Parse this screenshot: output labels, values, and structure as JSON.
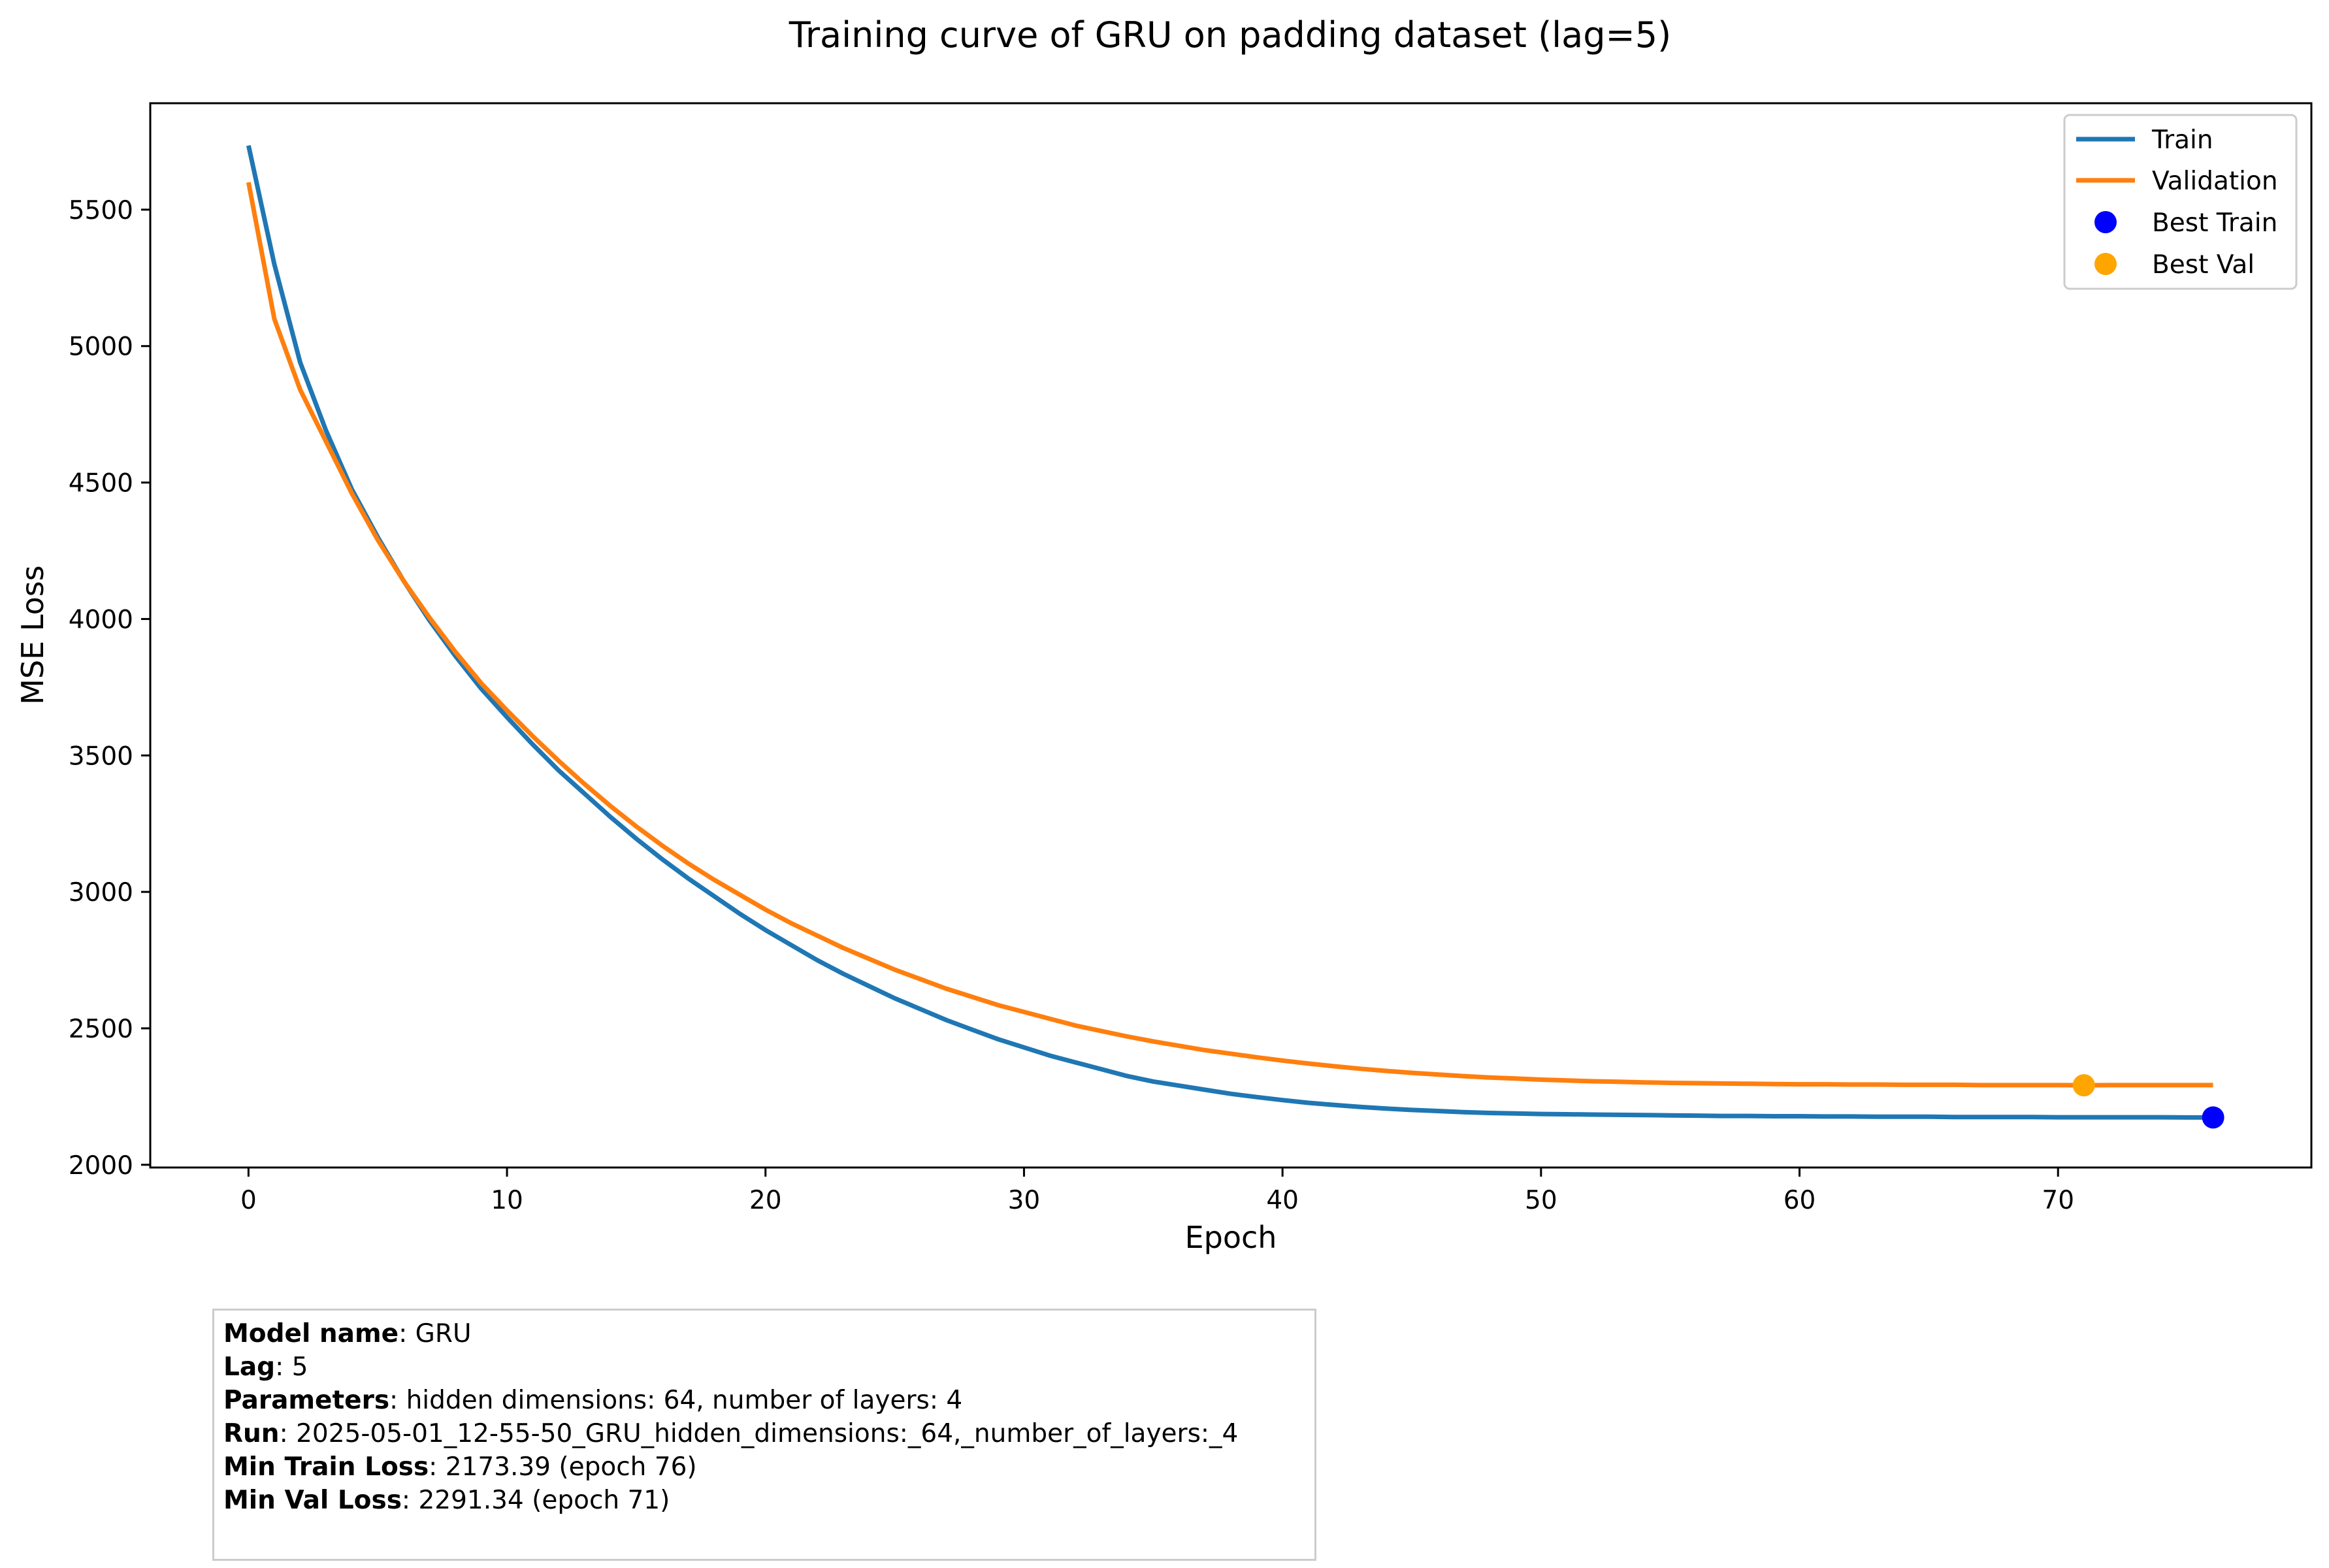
{
  "chart_data": {
    "type": "line",
    "title": "Training curve of GRU on padding dataset (lag=5)",
    "xlabel": "Epoch",
    "ylabel": "MSE Loss",
    "xlim": [
      -3.8,
      79.8
    ],
    "ylim": [
      1990,
      5890
    ],
    "xticks": [
      0,
      10,
      20,
      30,
      40,
      50,
      60,
      70
    ],
    "yticks": [
      2000,
      2500,
      3000,
      3500,
      4000,
      4500,
      5000,
      5500
    ],
    "grid": false,
    "legend_position": "top-right",
    "colors": {
      "train": "#1f77b4",
      "validation": "#ff7f0e",
      "best_train": "#0000ff",
      "best_val": "#ffa500"
    },
    "series": [
      {
        "name": "Train",
        "x": [
          0,
          1,
          2,
          3,
          4,
          5,
          6,
          7,
          8,
          9,
          10,
          11,
          12,
          13,
          14,
          15,
          16,
          17,
          18,
          19,
          20,
          21,
          22,
          23,
          24,
          25,
          26,
          27,
          28,
          29,
          30,
          31,
          32,
          33,
          34,
          35,
          36,
          37,
          38,
          39,
          40,
          41,
          42,
          43,
          44,
          45,
          46,
          47,
          48,
          49,
          50,
          51,
          52,
          53,
          54,
          55,
          56,
          57,
          58,
          59,
          60,
          61,
          62,
          63,
          64,
          65,
          66,
          67,
          68,
          69,
          70,
          71,
          72,
          73,
          74,
          75,
          76
        ],
        "values": [
          5735,
          5300,
          4940,
          4690,
          4475,
          4300,
          4140,
          3995,
          3865,
          3745,
          3640,
          3540,
          3445,
          3360,
          3275,
          3195,
          3120,
          3050,
          2985,
          2920,
          2860,
          2805,
          2750,
          2700,
          2655,
          2610,
          2570,
          2530,
          2495,
          2460,
          2430,
          2400,
          2375,
          2350,
          2325,
          2305,
          2290,
          2275,
          2260,
          2248,
          2237,
          2227,
          2219,
          2212,
          2206,
          2201,
          2197,
          2193,
          2190,
          2188,
          2186,
          2185,
          2184,
          2183,
          2182,
          2181,
          2180,
          2179,
          2179,
          2178,
          2178,
          2177,
          2177,
          2176,
          2176,
          2176,
          2175,
          2175,
          2175,
          2175,
          2174,
          2174,
          2174,
          2174,
          2174,
          2173.5,
          2173.39
        ]
      },
      {
        "name": "Validation",
        "x": [
          0,
          1,
          2,
          3,
          4,
          5,
          6,
          7,
          8,
          9,
          10,
          11,
          12,
          13,
          14,
          15,
          16,
          17,
          18,
          19,
          20,
          21,
          22,
          23,
          24,
          25,
          26,
          27,
          28,
          29,
          30,
          31,
          32,
          33,
          34,
          35,
          36,
          37,
          38,
          39,
          40,
          41,
          42,
          43,
          44,
          45,
          46,
          47,
          48,
          49,
          50,
          51,
          52,
          53,
          54,
          55,
          56,
          57,
          58,
          59,
          60,
          61,
          62,
          63,
          64,
          65,
          66,
          67,
          68,
          69,
          70,
          71,
          72,
          73,
          74,
          75,
          76
        ],
        "values": [
          5600,
          5100,
          4840,
          4650,
          4460,
          4290,
          4140,
          4005,
          3880,
          3765,
          3665,
          3570,
          3480,
          3395,
          3315,
          3240,
          3170,
          3105,
          3045,
          2990,
          2935,
          2885,
          2840,
          2795,
          2755,
          2715,
          2680,
          2645,
          2615,
          2585,
          2560,
          2535,
          2510,
          2490,
          2470,
          2452,
          2436,
          2420,
          2407,
          2394,
          2382,
          2371,
          2361,
          2352,
          2344,
          2337,
          2331,
          2325,
          2320,
          2316,
          2312,
          2309,
          2306,
          2304,
          2302,
          2300,
          2299,
          2298,
          2297,
          2296,
          2295,
          2295,
          2294,
          2294,
          2293,
          2293,
          2293,
          2292,
          2292,
          2292,
          2292,
          2291.34,
          2292,
          2292,
          2292,
          2292,
          2292
        ]
      }
    ],
    "markers": [
      {
        "name": "Best Train",
        "x": 76,
        "y": 2173.39
      },
      {
        "name": "Best Val",
        "x": 71,
        "y": 2291.34
      }
    ]
  },
  "info": [
    {
      "key": "Model name",
      "value": ": GRU"
    },
    {
      "key": "Lag",
      "value": ": 5"
    },
    {
      "key": "Parameters",
      "value": ": hidden dimensions: 64, number of layers: 4"
    },
    {
      "key": "Run",
      "value": ": 2025-05-01_12-55-50_GRU_hidden_dimensions:_64,_number_of_layers:_4"
    },
    {
      "key": "Min Train Loss",
      "value": ": 2173.39 (epoch 76)"
    },
    {
      "key": "Min Val Loss",
      "value": ": 2291.34 (epoch 71)"
    }
  ]
}
